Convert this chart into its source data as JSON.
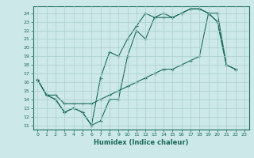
{
  "line1": {
    "x": [
      0,
      1,
      2,
      3,
      4,
      5,
      6,
      7,
      8,
      9,
      10,
      11,
      12,
      13,
      14,
      15,
      16,
      17,
      18,
      19,
      20,
      21,
      22
    ],
    "y": [
      16.3,
      14.5,
      14.0,
      12.5,
      13.0,
      12.5,
      11.0,
      11.5,
      14.0,
      14.0,
      19.0,
      22.0,
      21.0,
      23.5,
      23.5,
      23.5,
      24.0,
      24.5,
      24.5,
      24.0,
      23.0,
      18.0,
      17.5
    ]
  },
  "line2": {
    "x": [
      0,
      1,
      2,
      3,
      4,
      5,
      6,
      7,
      8,
      9,
      10,
      11,
      12,
      13,
      14,
      15,
      16,
      17,
      18,
      19,
      20,
      21
    ],
    "y": [
      16.3,
      14.5,
      14.0,
      12.5,
      13.0,
      12.5,
      11.0,
      16.5,
      19.5,
      19.0,
      21.0,
      22.5,
      24.0,
      23.5,
      24.0,
      23.5,
      24.0,
      24.5,
      24.5,
      24.0,
      23.0,
      18.0
    ]
  },
  "line3": {
    "x": [
      0,
      1,
      2,
      3,
      4,
      5,
      6,
      7,
      8,
      9,
      10,
      11,
      12,
      13,
      14,
      15,
      16,
      17,
      18,
      19,
      20,
      21,
      22
    ],
    "y": [
      16.3,
      14.5,
      14.5,
      13.5,
      13.5,
      13.5,
      13.5,
      14.0,
      14.5,
      15.0,
      15.5,
      16.0,
      16.5,
      17.0,
      17.5,
      17.5,
      18.0,
      18.5,
      19.0,
      24.0,
      24.0,
      18.0,
      17.5
    ]
  },
  "color": "#1a6b5a",
  "bg_color": "#cce8e8",
  "grid_color": "#aacfcf",
  "xlabel": "Humidex (Indice chaleur)",
  "xlim": [
    -0.5,
    23.5
  ],
  "ylim": [
    10.5,
    24.8
  ],
  "xticks": [
    0,
    1,
    2,
    3,
    4,
    5,
    6,
    7,
    8,
    9,
    10,
    11,
    12,
    13,
    14,
    15,
    16,
    17,
    18,
    19,
    20,
    21,
    22,
    23
  ],
  "yticks": [
    11,
    12,
    13,
    14,
    15,
    16,
    17,
    18,
    19,
    20,
    21,
    22,
    23,
    24
  ],
  "markersize": 3.5,
  "linewidth": 0.8
}
